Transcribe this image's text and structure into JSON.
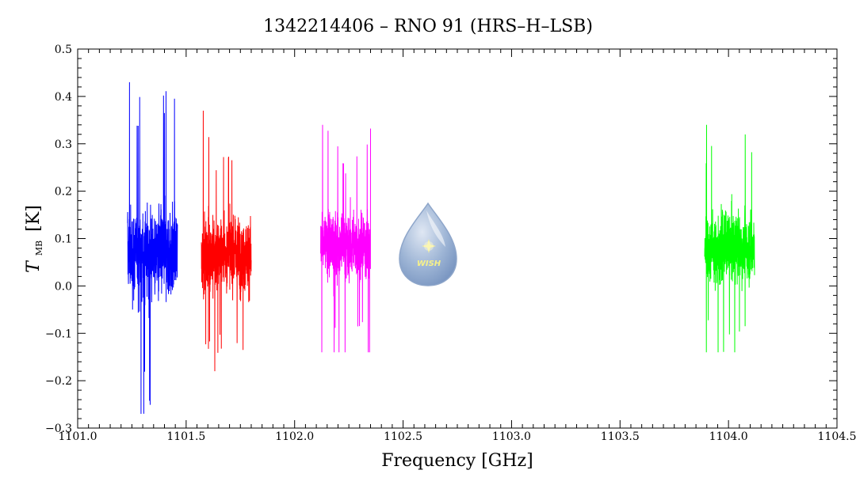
{
  "chart_data": {
    "type": "line",
    "title": "1342214406 – RNO 91 (HRS–H–LSB)",
    "xlabel": "Frequency [GHz]",
    "ylabel_main": "T",
    "ylabel_sub": "MB",
    "ylabel_unit": "[K]",
    "xlim": [
      1101.0,
      1104.5
    ],
    "ylim": [
      -0.3,
      0.5
    ],
    "xticks": [
      1101.0,
      1101.5,
      1102.0,
      1102.5,
      1103.0,
      1103.5,
      1104.0,
      1104.5
    ],
    "xtick_labels": [
      "1101.0",
      "1101.5",
      "1102.0",
      "1102.5",
      "1103.0",
      "1103.5",
      "1104.0",
      "1104.5"
    ],
    "yticks": [
      -0.3,
      -0.2,
      -0.1,
      0.0,
      0.1,
      0.2,
      0.3,
      0.4,
      0.5
    ],
    "ytick_labels": [
      "−0.3",
      "−0.2",
      "−0.1",
      "0.0",
      "0.1",
      "0.2",
      "0.3",
      "0.4",
      "0.5"
    ],
    "series": [
      {
        "color": "#0000ff",
        "x_range": [
          1101.23,
          1101.46
        ],
        "mean": 0.07,
        "spread": 0.08,
        "max": 0.43,
        "min": -0.27
      },
      {
        "color": "#ff0000",
        "x_range": [
          1101.57,
          1101.8
        ],
        "mean": 0.07,
        "spread": 0.065,
        "max": 0.37,
        "min": -0.18
      },
      {
        "color": "#ff00ff",
        "x_range": [
          1102.12,
          1102.35
        ],
        "mean": 0.085,
        "spread": 0.06,
        "max": 0.34,
        "min": -0.14
      },
      {
        "color": "#00ff00",
        "x_range": [
          1103.89,
          1104.12
        ],
        "mean": 0.08,
        "spread": 0.06,
        "max": 0.34,
        "min": -0.14
      }
    ]
  },
  "logo": {
    "name": "wish-logo",
    "text": "WISH"
  }
}
